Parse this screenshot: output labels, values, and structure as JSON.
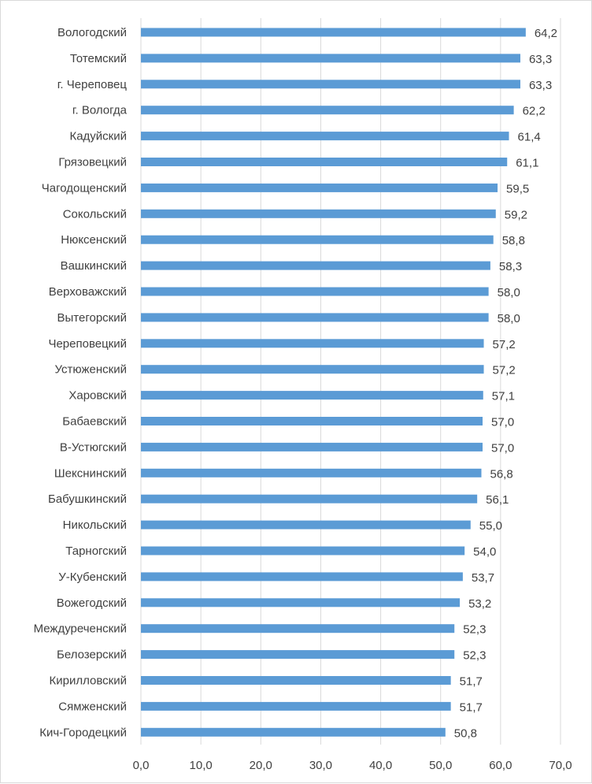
{
  "chart_data": {
    "type": "bar",
    "orientation": "horizontal",
    "categories": [
      "Вологодский",
      "Тотемский",
      "г. Череповец",
      "г. Вологда",
      "Кадуйский",
      "Грязовецкий",
      "Чагодощенский",
      "Сокольский",
      "Нюксенский",
      "Вашкинский",
      "Верховажский",
      "Вытегорский",
      "Череповецкий",
      "Устюженский",
      "Харовский",
      "Бабаевский",
      "В-Устюгский",
      "Шекснинский",
      "Бабушкинский",
      "Никольский",
      "Тарногский",
      "У-Кубенский",
      "Вожегодский",
      "Междуреченский",
      "Белозерский",
      "Кирилловский",
      "Сямженский",
      "Кич-Городецкий"
    ],
    "values": [
      64.2,
      63.3,
      63.3,
      62.2,
      61.4,
      61.1,
      59.5,
      59.2,
      58.8,
      58.3,
      58.0,
      58.0,
      57.2,
      57.2,
      57.1,
      57.0,
      57.0,
      56.8,
      56.1,
      55.0,
      54.0,
      53.7,
      53.2,
      52.3,
      52.3,
      51.7,
      51.7,
      50.8
    ],
    "value_labels": [
      "64,2",
      "63,3",
      "63,3",
      "62,2",
      "61,4",
      "61,1",
      "59,5",
      "59,2",
      "58,8",
      "58,3",
      "58,0",
      "58,0",
      "57,2",
      "57,2",
      "57,1",
      "57,0",
      "57,0",
      "56,8",
      "56,1",
      "55,0",
      "54,0",
      "53,7",
      "53,2",
      "52,3",
      "52,3",
      "51,7",
      "51,7",
      "50,8"
    ],
    "x_ticks": [
      "0,0",
      "10,0",
      "20,0",
      "30,0",
      "40,0",
      "50,0",
      "60,0",
      "70,0"
    ],
    "xlim": [
      0,
      70
    ],
    "gridlines": "vertical",
    "bar_color": "#5b9bd5",
    "grid_color": "#d9d9d9",
    "title": "",
    "xlabel": "",
    "ylabel": ""
  }
}
